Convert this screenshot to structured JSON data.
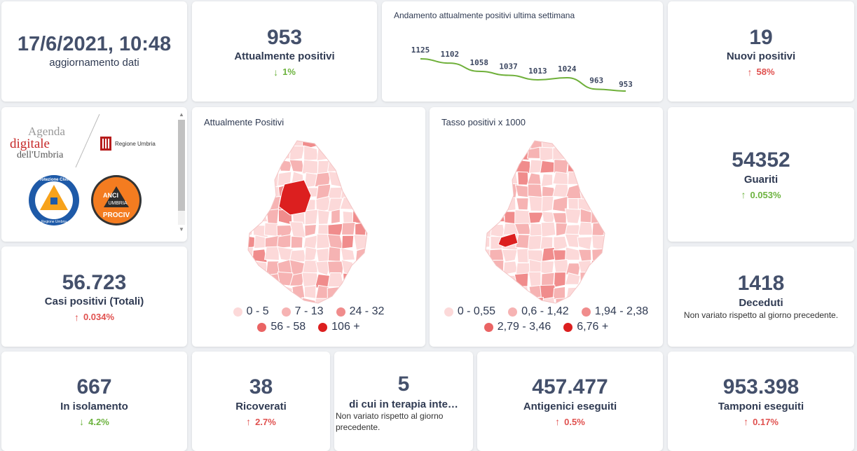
{
  "update": {
    "datetime": "17/6/2021, 10:48",
    "label": "aggiornamento dati"
  },
  "positivi": {
    "value": "953",
    "label": "Attualmente positivi",
    "delta": "1%",
    "direction": "down"
  },
  "trend": {
    "title": "Andamento attualmente positivi ultima settimana",
    "values": [
      1125,
      1102,
      1058,
      1037,
      1013,
      1024,
      963,
      953
    ],
    "labels": [
      "1125",
      "1102",
      "1058",
      "1037",
      "1013",
      "1024",
      "963",
      "953"
    ],
    "color": "#6fb03a"
  },
  "nuovi": {
    "value": "19",
    "label": "Nuovi positivi",
    "delta": "58%",
    "direction": "up"
  },
  "logos": {
    "agenda_line1": "Agenda",
    "agenda_line2": "digitale",
    "agenda_line3": "dell'Umbria",
    "regione": "Regione Umbria",
    "protezione": "Protezione Civile",
    "protezione_sub": "Regione Umbria",
    "anci": "ANCI",
    "anci_sub": "UMBRIA",
    "prociv": "PROCIV"
  },
  "map_positivi": {
    "title": "Attualmente Positivi",
    "legend": [
      {
        "label": "0 - 5",
        "color": "#fcd9d9"
      },
      {
        "label": "7 - 13",
        "color": "#f6b3b3"
      },
      {
        "label": "24 - 32",
        "color": "#f08c8c"
      },
      {
        "label": "56 - 58",
        "color": "#ea6464"
      },
      {
        "label": "106 +",
        "color": "#dc1f1f"
      }
    ]
  },
  "map_tasso": {
    "title": "Tasso positivi x 1000",
    "legend": [
      {
        "label": "0 - 0,55",
        "color": "#fcd9d9"
      },
      {
        "label": "0,6 - 1,42",
        "color": "#f6b3b3"
      },
      {
        "label": "1,94 - 2,38",
        "color": "#f08c8c"
      },
      {
        "label": "2,79 - 3,46",
        "color": "#ea6464"
      },
      {
        "label": "6,76 +",
        "color": "#dc1f1f"
      }
    ]
  },
  "guariti": {
    "value": "54352",
    "label": "Guariti",
    "delta": "0.053%",
    "direction": "up"
  },
  "casi": {
    "value": "56.723",
    "label": "Casi positivi (Totali)",
    "delta": "0.034%",
    "direction": "up"
  },
  "deceduti": {
    "value": "1418",
    "label": "Deceduti",
    "note": "Non variato rispetto al giorno precedente."
  },
  "isolamento": {
    "value": "667",
    "label": "In isolamento",
    "delta": "4.2%",
    "direction": "down"
  },
  "ricoverati": {
    "value": "38",
    "label": "Ricoverati",
    "delta": "2.7%",
    "direction": "up"
  },
  "terapia": {
    "value": "5",
    "label": "di cui in terapia inte…",
    "note": "Non variato rispetto al giorno precedente."
  },
  "antigenici": {
    "value": "457.477",
    "label": "Antigenici eseguiti",
    "delta": "0.5%",
    "direction": "up"
  },
  "tamponi": {
    "value": "953.398",
    "label": "Tamponi eseguiti",
    "delta": "0.17%",
    "direction": "up"
  },
  "colors": {
    "green": "#6db33f",
    "red": "#e0514f",
    "text": "#44506b"
  },
  "icons": {
    "down": "arrow-down-icon",
    "up": "arrow-up-icon"
  }
}
